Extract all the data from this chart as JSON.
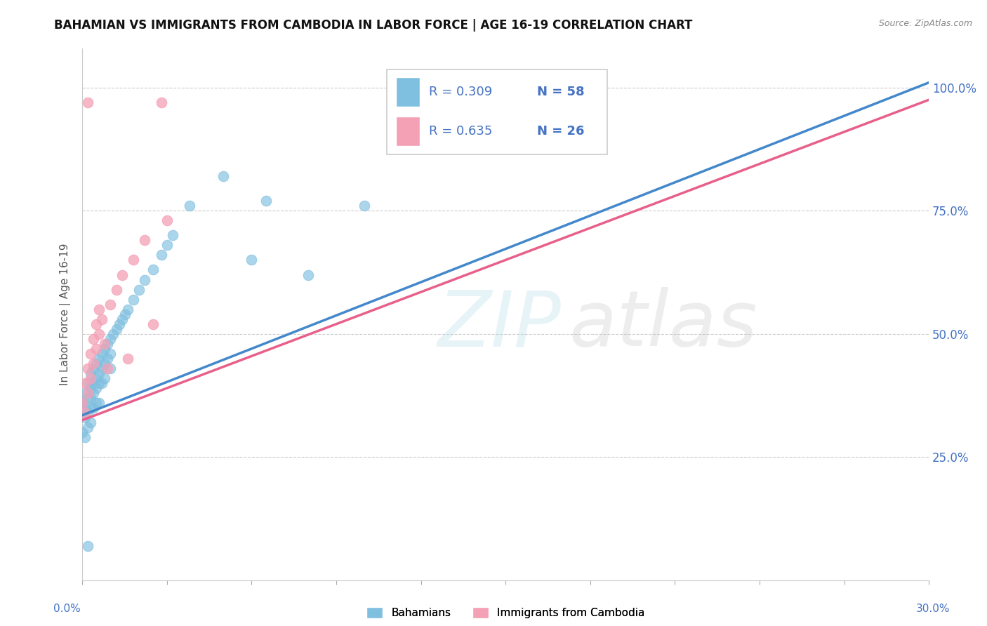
{
  "title": "BAHAMIAN VS IMMIGRANTS FROM CAMBODIA IN LABOR FORCE | AGE 16-19 CORRELATION CHART",
  "source": "Source: ZipAtlas.com",
  "ylabel": "In Labor Force | Age 16-19",
  "yticks": [
    "25.0%",
    "50.0%",
    "75.0%",
    "100.0%"
  ],
  "ytick_vals": [
    0.25,
    0.5,
    0.75,
    1.0
  ],
  "legend_blue_r": "0.309",
  "legend_blue_n": "58",
  "legend_pink_r": "0.635",
  "legend_pink_n": "26",
  "blue_color": "#7fbfdf",
  "pink_color": "#f4a0b5",
  "xmin": 0.0,
  "xmax": 0.3,
  "ymin": 0.0,
  "ymax": 1.08,
  "trend_y0_blue": 0.335,
  "trend_y1_blue": 1.01,
  "trend_y0_pink": 0.325,
  "trend_y1_pink": 0.975,
  "blue_scatter_x": [
    0.0,
    0.0,
    0.001,
    0.001,
    0.001,
    0.001,
    0.002,
    0.002,
    0.002,
    0.002,
    0.003,
    0.003,
    0.003,
    0.003,
    0.003,
    0.004,
    0.004,
    0.004,
    0.004,
    0.005,
    0.005,
    0.005,
    0.005,
    0.006,
    0.006,
    0.006,
    0.006,
    0.007,
    0.007,
    0.007,
    0.008,
    0.008,
    0.008,
    0.009,
    0.009,
    0.01,
    0.01,
    0.01,
    0.011,
    0.012,
    0.013,
    0.014,
    0.015,
    0.016,
    0.018,
    0.02,
    0.022,
    0.025,
    0.028,
    0.03,
    0.032,
    0.038,
    0.05,
    0.06,
    0.065,
    0.08,
    0.1,
    0.002
  ],
  "blue_scatter_y": [
    0.36,
    0.3,
    0.38,
    0.35,
    0.33,
    0.29,
    0.4,
    0.37,
    0.34,
    0.31,
    0.42,
    0.39,
    0.37,
    0.35,
    0.32,
    0.43,
    0.4,
    0.38,
    0.35,
    0.44,
    0.41,
    0.39,
    0.36,
    0.45,
    0.42,
    0.4,
    0.36,
    0.46,
    0.43,
    0.4,
    0.47,
    0.44,
    0.41,
    0.48,
    0.45,
    0.49,
    0.46,
    0.43,
    0.5,
    0.51,
    0.52,
    0.53,
    0.54,
    0.55,
    0.57,
    0.59,
    0.61,
    0.63,
    0.66,
    0.68,
    0.7,
    0.76,
    0.82,
    0.65,
    0.77,
    0.62,
    0.76,
    0.07
  ],
  "pink_scatter_x": [
    0.0,
    0.001,
    0.001,
    0.002,
    0.002,
    0.003,
    0.003,
    0.004,
    0.004,
    0.005,
    0.005,
    0.006,
    0.006,
    0.007,
    0.008,
    0.009,
    0.01,
    0.012,
    0.014,
    0.016,
    0.018,
    0.022,
    0.025,
    0.03,
    0.002,
    0.028
  ],
  "pink_scatter_y": [
    0.36,
    0.4,
    0.34,
    0.43,
    0.38,
    0.46,
    0.41,
    0.49,
    0.44,
    0.52,
    0.47,
    0.55,
    0.5,
    0.53,
    0.48,
    0.43,
    0.56,
    0.59,
    0.62,
    0.45,
    0.65,
    0.69,
    0.52,
    0.73,
    0.97,
    0.97
  ]
}
